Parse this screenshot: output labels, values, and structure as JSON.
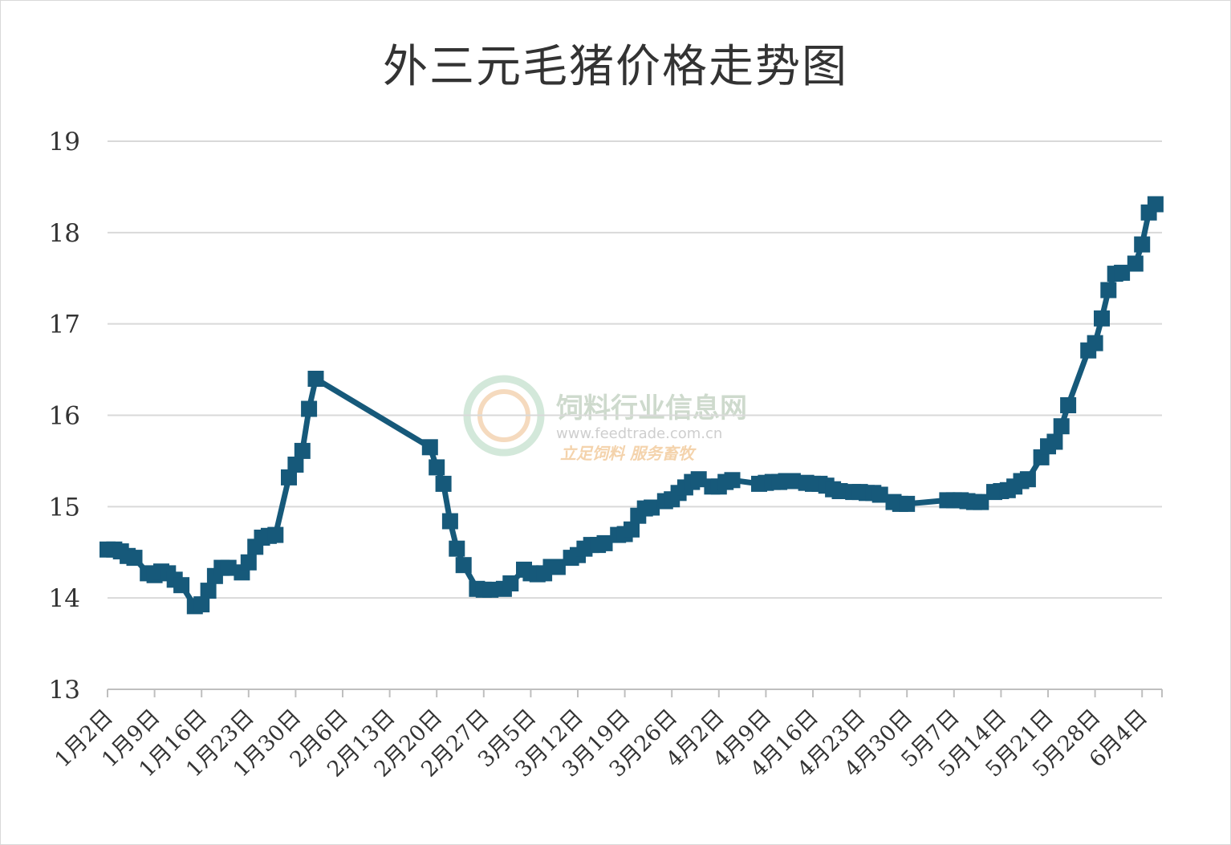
{
  "chart_data": {
    "type": "line",
    "title": "外三元毛猪价格走势图",
    "xlabel": "",
    "ylabel": "",
    "ylim": [
      13,
      19
    ],
    "yticks": [
      "13",
      "14",
      "15",
      "16",
      "17",
      "18",
      "19"
    ],
    "categories": [
      "1月2日",
      "1月9日",
      "1月16日",
      "1月23日",
      "1月30日",
      "2月6日",
      "2月13日",
      "2月20日",
      "2月27日",
      "3月5日",
      "3月12日",
      "3月19日",
      "3月26日",
      "4月2日",
      "4月9日",
      "4月16日",
      "4月23日",
      "4月30日",
      "5月7日",
      "5月14日",
      "5月21日",
      "5月28日",
      "6月4日"
    ],
    "grid": true,
    "legend": "none",
    "series": [
      {
        "color": "#16597a",
        "marker": "square",
        "points": [
          {
            "x": "1月2日",
            "y": 14.53
          },
          {
            "x": "1月3日",
            "y": 14.53
          },
          {
            "x": "1月4日",
            "y": 14.51
          },
          {
            "x": "1月5日",
            "y": 14.46
          },
          {
            "x": "1月6日",
            "y": 14.44
          },
          {
            "x": "1月8日",
            "y": 14.27
          },
          {
            "x": "1月9日",
            "y": 14.25
          },
          {
            "x": "1月10日",
            "y": 14.29
          },
          {
            "x": "1月11日",
            "y": 14.27
          },
          {
            "x": "1月12日",
            "y": 14.2
          },
          {
            "x": "1月13日",
            "y": 14.14
          },
          {
            "x": "1月15日",
            "y": 13.91
          },
          {
            "x": "1月16日",
            "y": 13.93
          },
          {
            "x": "1月17日",
            "y": 14.08
          },
          {
            "x": "1月18日",
            "y": 14.24
          },
          {
            "x": "1月19日",
            "y": 14.33
          },
          {
            "x": "1月20日",
            "y": 14.33
          },
          {
            "x": "1月22日",
            "y": 14.28
          },
          {
            "x": "1月23日",
            "y": 14.39
          },
          {
            "x": "1月24日",
            "y": 14.56
          },
          {
            "x": "1月25日",
            "y": 14.66
          },
          {
            "x": "1月26日",
            "y": 14.68
          },
          {
            "x": "1月27日",
            "y": 14.69
          },
          {
            "x": "1月29日",
            "y": 15.32
          },
          {
            "x": "1月30日",
            "y": 15.46
          },
          {
            "x": "1月31日",
            "y": 15.61
          },
          {
            "x": "2月1日",
            "y": 16.07
          },
          {
            "x": "2月2日",
            "y": 16.4
          },
          {
            "x": "2月19日",
            "y": 15.65
          },
          {
            "x": "2月20日",
            "y": 15.43
          },
          {
            "x": "2月21日",
            "y": 15.25
          },
          {
            "x": "2月22日",
            "y": 14.84
          },
          {
            "x": "2月23日",
            "y": 14.54
          },
          {
            "x": "2月24日",
            "y": 14.36
          },
          {
            "x": "2月26日",
            "y": 14.1
          },
          {
            "x": "2月27日",
            "y": 14.09
          },
          {
            "x": "2月28日",
            "y": 14.09
          },
          {
            "x": "3月1日",
            "y": 14.1
          },
          {
            "x": "3月2日",
            "y": 14.16
          },
          {
            "x": "3月4日",
            "y": 14.31
          },
          {
            "x": "3月5日",
            "y": 14.27
          },
          {
            "x": "3月6日",
            "y": 14.26
          },
          {
            "x": "3月7日",
            "y": 14.27
          },
          {
            "x": "3月8日",
            "y": 14.34
          },
          {
            "x": "3月9日",
            "y": 14.34
          },
          {
            "x": "3月11日",
            "y": 14.44
          },
          {
            "x": "3月12日",
            "y": 14.47
          },
          {
            "x": "3月13日",
            "y": 14.54
          },
          {
            "x": "3月14日",
            "y": 14.58
          },
          {
            "x": "3月15日",
            "y": 14.58
          },
          {
            "x": "3月16日",
            "y": 14.6
          },
          {
            "x": "3月18日",
            "y": 14.69
          },
          {
            "x": "3月19日",
            "y": 14.7
          },
          {
            "x": "3月20日",
            "y": 14.75
          },
          {
            "x": "3月21日",
            "y": 14.9
          },
          {
            "x": "3月22日",
            "y": 14.98
          },
          {
            "x": "3月23日",
            "y": 14.99
          },
          {
            "x": "3月25日",
            "y": 15.06
          },
          {
            "x": "3月26日",
            "y": 15.08
          },
          {
            "x": "3月27日",
            "y": 15.15
          },
          {
            "x": "3月28日",
            "y": 15.21
          },
          {
            "x": "3月29日",
            "y": 15.27
          },
          {
            "x": "3月30日",
            "y": 15.3
          },
          {
            "x": "4月1日",
            "y": 15.22
          },
          {
            "x": "4月2日",
            "y": 15.22
          },
          {
            "x": "4月3日",
            "y": 15.27
          },
          {
            "x": "4月4日",
            "y": 15.29
          },
          {
            "x": "4月8日",
            "y": 15.25
          },
          {
            "x": "4月9日",
            "y": 15.26
          },
          {
            "x": "4月10日",
            "y": 15.27
          },
          {
            "x": "4月11日",
            "y": 15.27
          },
          {
            "x": "4月12日",
            "y": 15.28
          },
          {
            "x": "4月13日",
            "y": 15.28
          },
          {
            "x": "4月15日",
            "y": 15.26
          },
          {
            "x": "4月16日",
            "y": 15.25
          },
          {
            "x": "4月17日",
            "y": 15.25
          },
          {
            "x": "4月18日",
            "y": 15.23
          },
          {
            "x": "4月19日",
            "y": 15.19
          },
          {
            "x": "4月20日",
            "y": 15.17
          },
          {
            "x": "4月22日",
            "y": 15.16
          },
          {
            "x": "4月23日",
            "y": 15.16
          },
          {
            "x": "4月24日",
            "y": 15.15
          },
          {
            "x": "4月25日",
            "y": 15.15
          },
          {
            "x": "4月26日",
            "y": 15.13
          },
          {
            "x": "4月28日",
            "y": 15.05
          },
          {
            "x": "4月29日",
            "y": 15.03
          },
          {
            "x": "4月30日",
            "y": 15.03
          },
          {
            "x": "5月6日",
            "y": 15.07
          },
          {
            "x": "5月7日",
            "y": 15.07
          },
          {
            "x": "5月8日",
            "y": 15.07
          },
          {
            "x": "5月9日",
            "y": 15.06
          },
          {
            "x": "5月10日",
            "y": 15.05
          },
          {
            "x": "5月11日",
            "y": 15.05
          },
          {
            "x": "5月13日",
            "y": 15.16
          },
          {
            "x": "5月14日",
            "y": 15.17
          },
          {
            "x": "5月15日",
            "y": 15.18
          },
          {
            "x": "5月16日",
            "y": 15.22
          },
          {
            "x": "5月17日",
            "y": 15.28
          },
          {
            "x": "5月18日",
            "y": 15.3
          },
          {
            "x": "5月20日",
            "y": 15.54
          },
          {
            "x": "5月21日",
            "y": 15.66
          },
          {
            "x": "5月22日",
            "y": 15.71
          },
          {
            "x": "5月23日",
            "y": 15.88
          },
          {
            "x": "5月24日",
            "y": 16.11
          },
          {
            "x": "5月27日",
            "y": 16.71
          },
          {
            "x": "5月28日",
            "y": 16.79
          },
          {
            "x": "5月29日",
            "y": 17.06
          },
          {
            "x": "5月30日",
            "y": 17.37
          },
          {
            "x": "5月31日",
            "y": 17.55
          },
          {
            "x": "6月1日",
            "y": 17.56
          },
          {
            "x": "6月3日",
            "y": 17.66
          },
          {
            "x": "6月4日",
            "y": 17.87
          },
          {
            "x": "6月5日",
            "y": 18.22
          },
          {
            "x": "6月6日",
            "y": 18.31
          }
        ]
      }
    ]
  },
  "watermark": {
    "name": "饲料行业信息网",
    "url": "www.feedtrade.com.cn",
    "slogan": "立足饲料    服务畜牧"
  }
}
